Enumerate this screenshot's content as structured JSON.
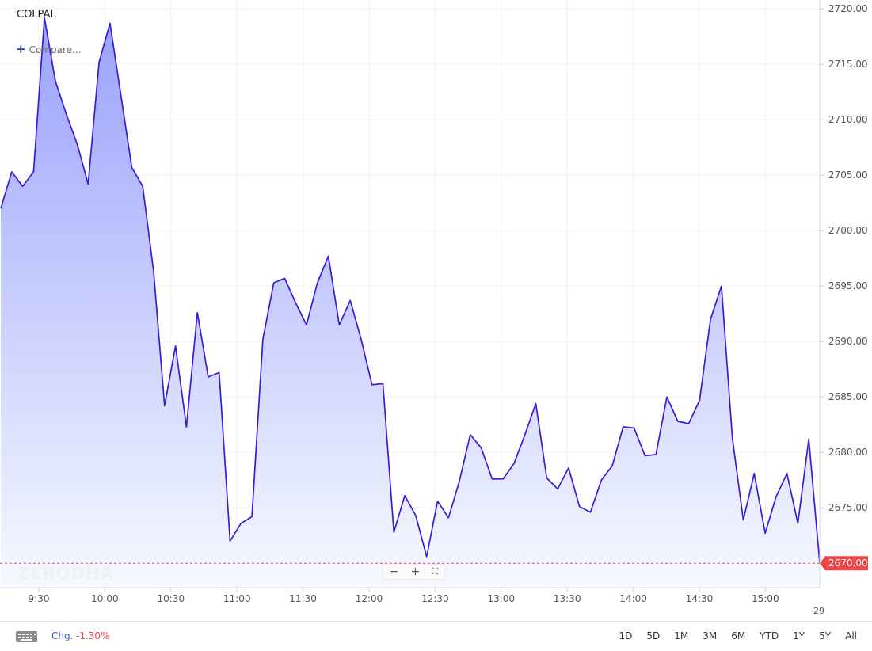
{
  "header": {
    "symbol": "COLPAL",
    "compare_label": "Compare..."
  },
  "watermark": "ZERODHA",
  "zoom_controls": {
    "zoom_out": "−",
    "zoom_in": "+",
    "fullscreen": "⛶"
  },
  "footer": {
    "keyboard_icon": "keyboard-icon",
    "chg_label": "Chg.",
    "chg_value": "-1.30%",
    "ranges": [
      "1D",
      "5D",
      "1M",
      "3M",
      "6M",
      "YTD",
      "1Y",
      "5Y",
      "All"
    ]
  },
  "colors": {
    "line": "#3a1bd6",
    "fill_top": "#9aa2fb",
    "fill_bottom": "#f6f9ff",
    "last_price_bg": "#ef4747",
    "negative": "#e0434d",
    "accent": "#3b5cc7"
  },
  "chart_data": {
    "type": "area",
    "title": "COLPAL",
    "xlabel": "",
    "ylabel": "",
    "x_ticks": [
      "9:30",
      "10:00",
      "10:30",
      "11:00",
      "11:30",
      "12:00",
      "12:30",
      "13:00",
      "13:30",
      "14:00",
      "14:30",
      "15:00"
    ],
    "date_label": "29",
    "y_ticks": [
      2675,
      2680,
      2685,
      2690,
      2695,
      2700,
      2705,
      2710,
      2715,
      2720
    ],
    "ylim": [
      2667.8,
      2720.8
    ],
    "grid": true,
    "last_price": "2670.00",
    "series": [
      {
        "interval_minutes": 5,
        "values": [
          2702,
          2705.3,
          2704,
          2705.3,
          2719.2,
          2713.5,
          2710.5,
          2707.8,
          2704.2,
          2715.2,
          2718.7,
          2712.2,
          2705.7,
          2704,
          2696.3,
          2684.2,
          2689.6,
          2682.3,
          2692.6,
          2686.8,
          2687.2,
          2672,
          2673.6,
          2674.2,
          2690.2,
          2695.3,
          2695.7,
          2693.5,
          2691.5,
          2695.3,
          2697.7,
          2691.5,
          2693.7,
          2690.2,
          2686.1,
          2686.2,
          2672.8,
          2676.1,
          2674.3,
          2670.6,
          2675.6,
          2674.1,
          2677.4,
          2681.6,
          2680.4,
          2677.6,
          2677.6,
          2679,
          2681.6,
          2684.4,
          2677.7,
          2676.7,
          2678.6,
          2675.1,
          2674.6,
          2677.5,
          2678.8,
          2682.3,
          2682.2,
          2679.7,
          2679.8,
          2685,
          2682.8,
          2682.6,
          2684.7,
          2692,
          2695,
          2681.3,
          2673.9,
          2678.1,
          2672.7,
          2676,
          2678.1,
          2673.6,
          2681.2,
          2670
        ]
      }
    ]
  }
}
